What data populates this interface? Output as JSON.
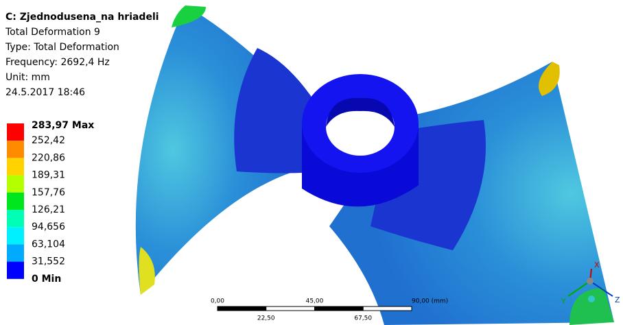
{
  "header": {
    "title": "C: Zjednodusena_na hriadeli",
    "lines": [
      "Total Deformation 9",
      "Type: Total Deformation",
      "Frequency: 2692,4 Hz",
      "Unit: mm",
      "24.5.2017 18:46"
    ]
  },
  "legend": {
    "labels": [
      "283,97 Max",
      "252,42",
      "220,86",
      "189,31",
      "157,76",
      "126,21",
      "94,656",
      "63,104",
      "31,552",
      "0 Min"
    ],
    "colors": [
      "#ff0000",
      "#ff8c00",
      "#ffd200",
      "#b4ff00",
      "#00e61e",
      "#00ffb4",
      "#00f0ff",
      "#00aaff",
      "#0000ff"
    ]
  },
  "scale_bar": {
    "top_labels": [
      "0,00",
      "45,00",
      "90,00 (mm)"
    ],
    "bottom_labels": [
      "22,50",
      "67,50"
    ]
  },
  "triad": {
    "x": "X",
    "y": "Y",
    "z": "Z"
  }
}
